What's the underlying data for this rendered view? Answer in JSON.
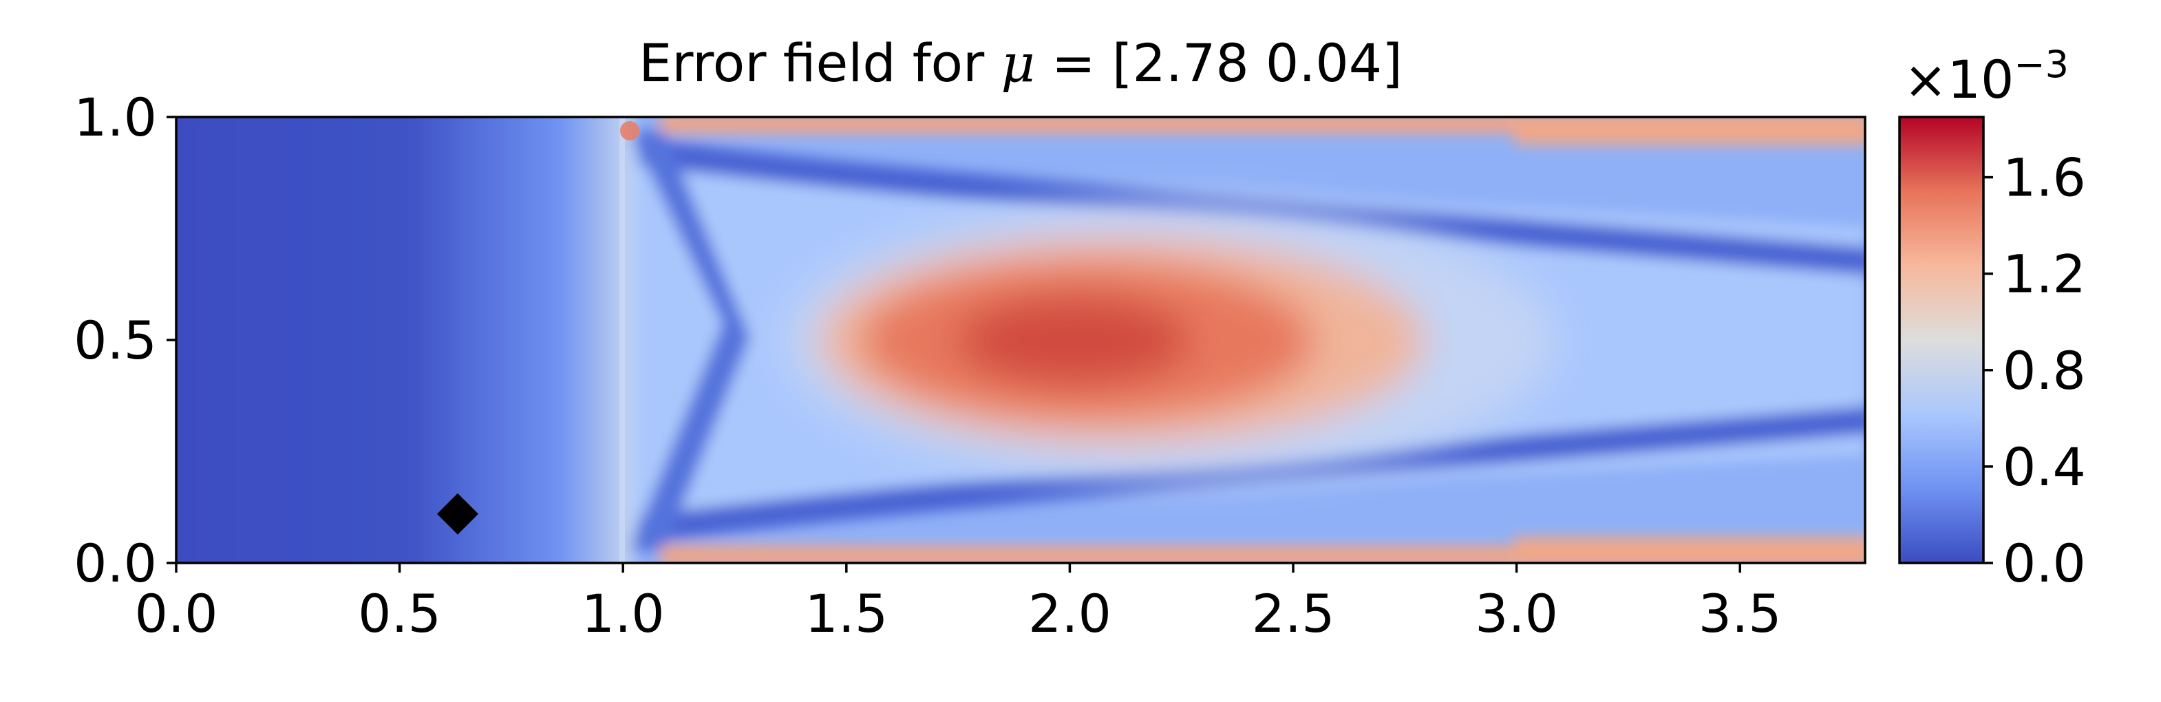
{
  "chart_data": {
    "type": "heatmap",
    "title_prefix": "Error field for ",
    "title_symbol": "μ",
    "title_suffix": " = [2.78 0.04]",
    "xlabel": "",
    "ylabel": "",
    "xlim": [
      0.0,
      3.78
    ],
    "ylim": [
      0.0,
      1.0
    ],
    "x_ticks": [
      "0.0",
      "0.5",
      "1.0",
      "1.5",
      "2.0",
      "2.5",
      "3.0",
      "3.5"
    ],
    "x_tick_values": [
      0.0,
      0.5,
      1.0,
      1.5,
      2.0,
      2.5,
      3.0,
      3.5
    ],
    "y_ticks": [
      "0.0",
      "0.5",
      "1.0"
    ],
    "y_tick_values": [
      0.0,
      0.5,
      1.0
    ],
    "colormap": "coolwarm",
    "colormap_stops": [
      "#3b4cc0",
      "#6f92f3",
      "#aac7fd",
      "#dddddd",
      "#f7b89c",
      "#e7745b",
      "#b40426"
    ],
    "colorbar": {
      "range": [
        0.0,
        0.00185
      ],
      "ticks": [
        "0.0",
        "0.4",
        "0.8",
        "1.2",
        "1.6"
      ],
      "tick_values": [
        0.0,
        0.4,
        0.8,
        1.2,
        1.6
      ],
      "scale_base": "×10",
      "scale_exponent": "−3"
    },
    "marker": {
      "shape": "diamond",
      "x": 0.63,
      "y": 0.11,
      "color": "#000000"
    }
  }
}
